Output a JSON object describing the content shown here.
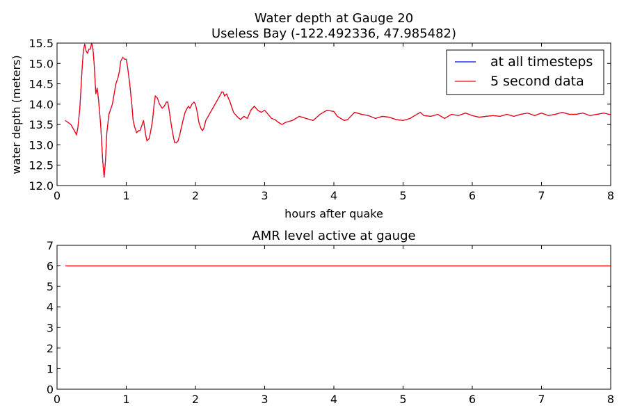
{
  "chart_data": [
    {
      "type": "line",
      "title": "Water depth at Gauge 20",
      "subtitle": "Useless Bay  (-122.492336, 47.985482)",
      "xlabel": "hours after quake",
      "ylabel": "water depth (meters)",
      "xlim": [
        0,
        8
      ],
      "ylim": [
        12.0,
        15.5
      ],
      "x_ticks": [
        "0",
        "1",
        "2",
        "3",
        "4",
        "5",
        "6",
        "7",
        "8"
      ],
      "y_ticks": [
        "12.0",
        "12.5",
        "13.0",
        "13.5",
        "14.0",
        "14.5",
        "15.0",
        "15.5"
      ],
      "grid": false,
      "legend_position": "top-right",
      "series": [
        {
          "name": "at all timesteps",
          "color": "#0000ff",
          "x": [
            0.12,
            0.2,
            0.25,
            0.28,
            0.3,
            0.33,
            0.36,
            0.38,
            0.4,
            0.42,
            0.44,
            0.46,
            0.48,
            0.5,
            0.52,
            0.54,
            0.56,
            0.58,
            0.6,
            0.63,
            0.66,
            0.68,
            0.7,
            0.72,
            0.75,
            0.78,
            0.8,
            0.83,
            0.85,
            0.88,
            0.9,
            0.92,
            0.95,
            0.98,
            1.0,
            1.02,
            1.05,
            1.08,
            1.1,
            1.12,
            1.15,
            1.18,
            1.2,
            1.22,
            1.25,
            1.28,
            1.3,
            1.33,
            1.35,
            1.38,
            1.4,
            1.42,
            1.45,
            1.48,
            1.5,
            1.52,
            1.55,
            1.58,
            1.6,
            1.62,
            1.65,
            1.68,
            1.7,
            1.72,
            1.75,
            1.78,
            1.8,
            1.82,
            1.85,
            1.88,
            1.9,
            1.92,
            1.95,
            1.98,
            2.0,
            2.02,
            2.05,
            2.08,
            2.1,
            2.12,
            2.15,
            2.2,
            2.25,
            2.3,
            2.35,
            2.38,
            2.4,
            2.42,
            2.45,
            2.5,
            2.55,
            2.6,
            2.65,
            2.7,
            2.75,
            2.8,
            2.85,
            2.9,
            2.95,
            3.0,
            3.05,
            3.1,
            3.15,
            3.2,
            3.25,
            3.3,
            3.4,
            3.5,
            3.6,
            3.7,
            3.8,
            3.9,
            4.0,
            4.05,
            4.1,
            4.15,
            4.2,
            4.3,
            4.4,
            4.5,
            4.6,
            4.7,
            4.8,
            4.9,
            5.0,
            5.1,
            5.15,
            5.2,
            5.25,
            5.3,
            5.4,
            5.5,
            5.6,
            5.7,
            5.8,
            5.9,
            6.0,
            6.1,
            6.2,
            6.3,
            6.4,
            6.5,
            6.6,
            6.7,
            6.8,
            6.9,
            7.0,
            7.1,
            7.2,
            7.3,
            7.4,
            7.5,
            7.6,
            7.7,
            7.8,
            7.9,
            8.0
          ],
          "y": [
            13.6,
            13.5,
            13.35,
            13.25,
            13.4,
            13.9,
            14.8,
            15.3,
            15.48,
            15.3,
            15.25,
            15.35,
            15.35,
            15.5,
            15.35,
            14.9,
            14.25,
            14.4,
            14.1,
            13.5,
            12.6,
            12.2,
            12.6,
            13.3,
            13.75,
            13.9,
            14.0,
            14.3,
            14.5,
            14.65,
            14.8,
            15.05,
            15.15,
            15.1,
            15.1,
            14.9,
            14.5,
            14.0,
            13.6,
            13.45,
            13.3,
            13.35,
            13.35,
            13.45,
            13.6,
            13.25,
            13.1,
            13.15,
            13.3,
            13.6,
            13.95,
            14.2,
            14.15,
            14.0,
            13.95,
            13.9,
            13.95,
            14.05,
            14.05,
            13.85,
            13.5,
            13.2,
            13.05,
            13.05,
            13.1,
            13.3,
            13.45,
            13.6,
            13.8,
            13.9,
            13.95,
            13.9,
            14.0,
            14.05,
            14.0,
            13.85,
            13.55,
            13.4,
            13.35,
            13.4,
            13.6,
            13.75,
            13.9,
            14.05,
            14.2,
            14.3,
            14.3,
            14.2,
            14.25,
            14.05,
            13.8,
            13.7,
            13.62,
            13.7,
            13.65,
            13.85,
            13.95,
            13.85,
            13.8,
            13.85,
            13.75,
            13.65,
            13.62,
            13.55,
            13.5,
            13.55,
            13.6,
            13.7,
            13.65,
            13.6,
            13.75,
            13.85,
            13.82,
            13.7,
            13.65,
            13.6,
            13.62,
            13.8,
            13.75,
            13.72,
            13.65,
            13.7,
            13.68,
            13.62,
            13.6,
            13.65,
            13.7,
            13.75,
            13.8,
            13.72,
            13.7,
            13.75,
            13.65,
            13.75,
            13.72,
            13.78,
            13.72,
            13.68,
            13.7,
            13.72,
            13.7,
            13.75,
            13.7,
            13.75,
            13.78,
            13.72,
            13.78,
            13.72,
            13.75,
            13.8,
            13.75,
            13.75,
            13.78,
            13.72,
            13.75,
            13.78,
            13.74
          ]
        },
        {
          "name": "5 second data",
          "color": "#ff0000",
          "same_values_as": "at all timesteps"
        }
      ]
    },
    {
      "type": "line",
      "title": "AMR level active at gauge",
      "xlabel": "",
      "ylabel": "",
      "xlim": [
        0,
        8
      ],
      "ylim": [
        0,
        7
      ],
      "x_ticks": [
        "0",
        "1",
        "2",
        "3",
        "4",
        "5",
        "6",
        "7",
        "8"
      ],
      "y_ticks": [
        "0",
        "1",
        "2",
        "3",
        "4",
        "5",
        "6",
        "7"
      ],
      "grid": false,
      "series": [
        {
          "color": "#ff0000",
          "x": [
            0.12,
            8.0
          ],
          "y": [
            6,
            6
          ]
        }
      ]
    }
  ]
}
